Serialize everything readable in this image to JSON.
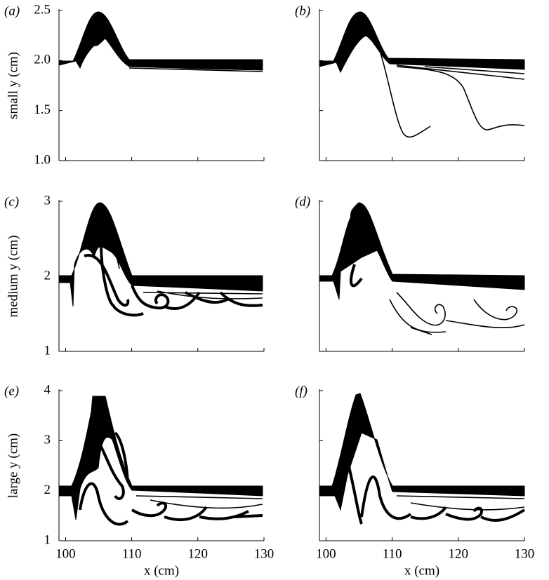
{
  "chart_data": [
    {
      "type": "image",
      "panel_label": "(a)",
      "ylabel": "small y (cm)",
      "xlim": [
        99,
        130
      ],
      "ylim": [
        1.0,
        2.5
      ],
      "xticks": [
        100,
        110,
        120,
        130
      ],
      "yticks": [
        {
          "value": 1.0,
          "label": "1.0"
        },
        {
          "value": 1.5,
          "label": "1.5"
        },
        {
          "value": 2.0,
          "label": "2.0"
        },
        {
          "value": 2.5,
          "label": "2.5"
        }
      ]
    },
    {
      "type": "image",
      "panel_label": "(b)",
      "xlim": [
        99,
        130
      ],
      "ylim": [
        1.0,
        2.5
      ],
      "xticks": [
        100,
        110,
        120,
        130
      ],
      "yticks": [
        1,
        1.5,
        2,
        2.5
      ]
    },
    {
      "type": "image",
      "panel_label": "(c)",
      "ylabel": "medium y (cm)",
      "xlim": [
        99,
        130
      ],
      "ylim": [
        1,
        3
      ],
      "xticks": [
        100,
        110,
        120,
        130
      ],
      "yticks": [
        1,
        2,
        3
      ]
    },
    {
      "type": "image",
      "panel_label": "(d)",
      "xlim": [
        99,
        130
      ],
      "ylim": [
        1,
        3
      ],
      "xticks": [
        100,
        110,
        120,
        130
      ],
      "yticks": [
        1,
        2,
        3
      ]
    },
    {
      "type": "image",
      "panel_label": "(e)",
      "ylabel": "large y (cm)",
      "xlabel": "x (cm)",
      "xlim": [
        99,
        130
      ],
      "ylim": [
        1,
        4
      ],
      "xticks": [
        100,
        110,
        120,
        130
      ],
      "yticks": [
        1,
        2,
        3,
        4
      ]
    },
    {
      "type": "image",
      "panel_label": "(f)",
      "xlabel": "x (cm)",
      "xlim": [
        99,
        130
      ],
      "ylim": [
        1,
        4
      ],
      "xticks": [
        100,
        110,
        120,
        130
      ],
      "yticks": [
        1,
        2,
        3,
        4
      ]
    }
  ]
}
